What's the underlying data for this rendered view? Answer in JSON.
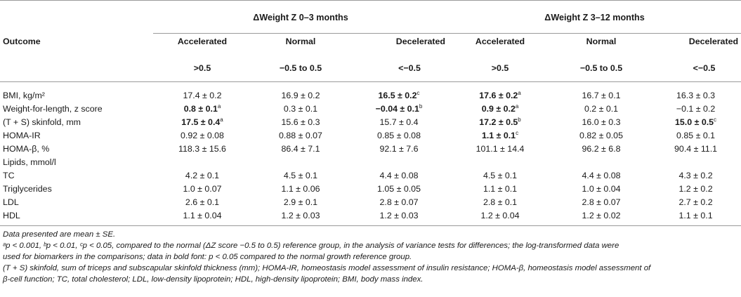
{
  "table": {
    "outcome_header": "Outcome",
    "groups": [
      "ΔWeight Z 0–3 months",
      "ΔWeight Z 3–12 months"
    ],
    "subheaders": [
      "Accelerated",
      "Normal",
      "Decelerated",
      "Accelerated",
      "Normal",
      "Decelerated"
    ],
    "ranges": [
      ">0.5",
      "−0.5 to 0.5",
      "<−0.5",
      ">0.5",
      "−0.5 to 0.5",
      "<−0.5"
    ],
    "rows": [
      {
        "label": "BMI, kg/m²",
        "cells": [
          {
            "v": "17.4 ± 0.2",
            "b": false,
            "sup": ""
          },
          {
            "v": "16.9 ± 0.2",
            "b": false,
            "sup": ""
          },
          {
            "v": "16.5 ± 0.2",
            "b": true,
            "sup": "c"
          },
          {
            "v": "17.6 ± 0.2",
            "b": true,
            "sup": "a"
          },
          {
            "v": "16.7 ± 0.1",
            "b": false,
            "sup": ""
          },
          {
            "v": "16.3 ± 0.3",
            "b": false,
            "sup": ""
          }
        ]
      },
      {
        "label": "Weight-for-length, z score",
        "cells": [
          {
            "v": "0.8 ± 0.1",
            "b": true,
            "sup": "a"
          },
          {
            "v": "0.3 ± 0.1",
            "b": false,
            "sup": ""
          },
          {
            "v": "−0.04 ± 0.1",
            "b": true,
            "sup": "b"
          },
          {
            "v": "0.9 ± 0.2",
            "b": true,
            "sup": "a"
          },
          {
            "v": "0.2 ± 0.1",
            "b": false,
            "sup": ""
          },
          {
            "v": "−0.1 ± 0.2",
            "b": false,
            "sup": ""
          }
        ]
      },
      {
        "label": "(T + S) skinfold, mm",
        "cells": [
          {
            "v": "17.5 ± 0.4",
            "b": true,
            "sup": "a"
          },
          {
            "v": "15.6 ± 0.3",
            "b": false,
            "sup": ""
          },
          {
            "v": "15.7 ± 0.4",
            "b": false,
            "sup": ""
          },
          {
            "v": "17.2 ± 0.5",
            "b": true,
            "sup": "b"
          },
          {
            "v": "16.0 ± 0.3",
            "b": false,
            "sup": ""
          },
          {
            "v": "15.0 ± 0.5",
            "b": true,
            "sup": "c"
          }
        ]
      },
      {
        "label": "HOMA-IR",
        "cells": [
          {
            "v": "0.92 ± 0.08",
            "b": false,
            "sup": ""
          },
          {
            "v": "0.88 ± 0.07",
            "b": false,
            "sup": ""
          },
          {
            "v": "0.85 ± 0.08",
            "b": false,
            "sup": ""
          },
          {
            "v": "1.1 ± 0.1",
            "b": true,
            "sup": "c"
          },
          {
            "v": "0.82 ± 0.05",
            "b": false,
            "sup": ""
          },
          {
            "v": "0.85 ± 0.1",
            "b": false,
            "sup": ""
          }
        ]
      },
      {
        "label": "HOMA-β, %",
        "cells": [
          {
            "v": "118.3 ± 15.6",
            "b": false,
            "sup": ""
          },
          {
            "v": "86.4 ± 7.1",
            "b": false,
            "sup": ""
          },
          {
            "v": "92.1 ± 7.6",
            "b": false,
            "sup": ""
          },
          {
            "v": "101.1 ± 14.4",
            "b": false,
            "sup": ""
          },
          {
            "v": "96.2 ± 6.8",
            "b": false,
            "sup": ""
          },
          {
            "v": "90.4 ± 11.1",
            "b": false,
            "sup": ""
          }
        ]
      },
      {
        "label": "Lipids, mmol/l",
        "cells": []
      },
      {
        "label": "TC",
        "cells": [
          {
            "v": "4.2 ± 0.1",
            "b": false,
            "sup": ""
          },
          {
            "v": "4.5 ± 0.1",
            "b": false,
            "sup": ""
          },
          {
            "v": "4.4 ± 0.08",
            "b": false,
            "sup": ""
          },
          {
            "v": "4.5 ± 0.1",
            "b": false,
            "sup": ""
          },
          {
            "v": "4.4 ± 0.08",
            "b": false,
            "sup": ""
          },
          {
            "v": "4.3 ± 0.2",
            "b": false,
            "sup": ""
          }
        ]
      },
      {
        "label": "Triglycerides",
        "cells": [
          {
            "v": "1.0 ± 0.07",
            "b": false,
            "sup": ""
          },
          {
            "v": "1.1 ± 0.06",
            "b": false,
            "sup": ""
          },
          {
            "v": "1.05 ± 0.05",
            "b": false,
            "sup": ""
          },
          {
            "v": "1.1 ± 0.1",
            "b": false,
            "sup": ""
          },
          {
            "v": "1.0 ± 0.04",
            "b": false,
            "sup": ""
          },
          {
            "v": "1.2 ± 0.2",
            "b": false,
            "sup": ""
          }
        ]
      },
      {
        "label": "LDL",
        "cells": [
          {
            "v": "2.6 ± 0.1",
            "b": false,
            "sup": ""
          },
          {
            "v": "2.9 ± 0.1",
            "b": false,
            "sup": ""
          },
          {
            "v": "2.8 ± 0.07",
            "b": false,
            "sup": ""
          },
          {
            "v": "2.8 ± 0.1",
            "b": false,
            "sup": ""
          },
          {
            "v": "2.8 ± 0.07",
            "b": false,
            "sup": ""
          },
          {
            "v": "2.7 ± 0.2",
            "b": false,
            "sup": ""
          }
        ]
      },
      {
        "label": "HDL",
        "cells": [
          {
            "v": "1.1 ± 0.04",
            "b": false,
            "sup": ""
          },
          {
            "v": "1.2 ± 0.03",
            "b": false,
            "sup": ""
          },
          {
            "v": "1.2 ± 0.03",
            "b": false,
            "sup": ""
          },
          {
            "v": "1.2 ± 0.04",
            "b": false,
            "sup": ""
          },
          {
            "v": "1.2 ± 0.02",
            "b": false,
            "sup": ""
          },
          {
            "v": "1.1 ± 0.1",
            "b": false,
            "sup": ""
          }
        ]
      }
    ]
  },
  "notes": [
    "Data presented are mean ± SE.",
    "ᵃp < 0.001, ᵇp < 0.01, ᶜp < 0.05, compared to the normal (ΔZ score −0.5 to 0.5) reference group, in the analysis of variance tests for differences; the log-transformed data were",
    "used for biomarkers in the comparisons; data in bold font: p < 0.05 compared to the normal growth reference group.",
    "(T + S) skinfold, sum of triceps and subscapular skinfold thickness (mm); HOMA-IR, homeostasis model assessment of insulin resistance; HOMA-β, homeostasis model assessment of",
    "β-cell function; TC, total cholesterol; LDL, low-density lipoprotein; HDL, high-density lipoprotein; BMI, body mass index."
  ]
}
